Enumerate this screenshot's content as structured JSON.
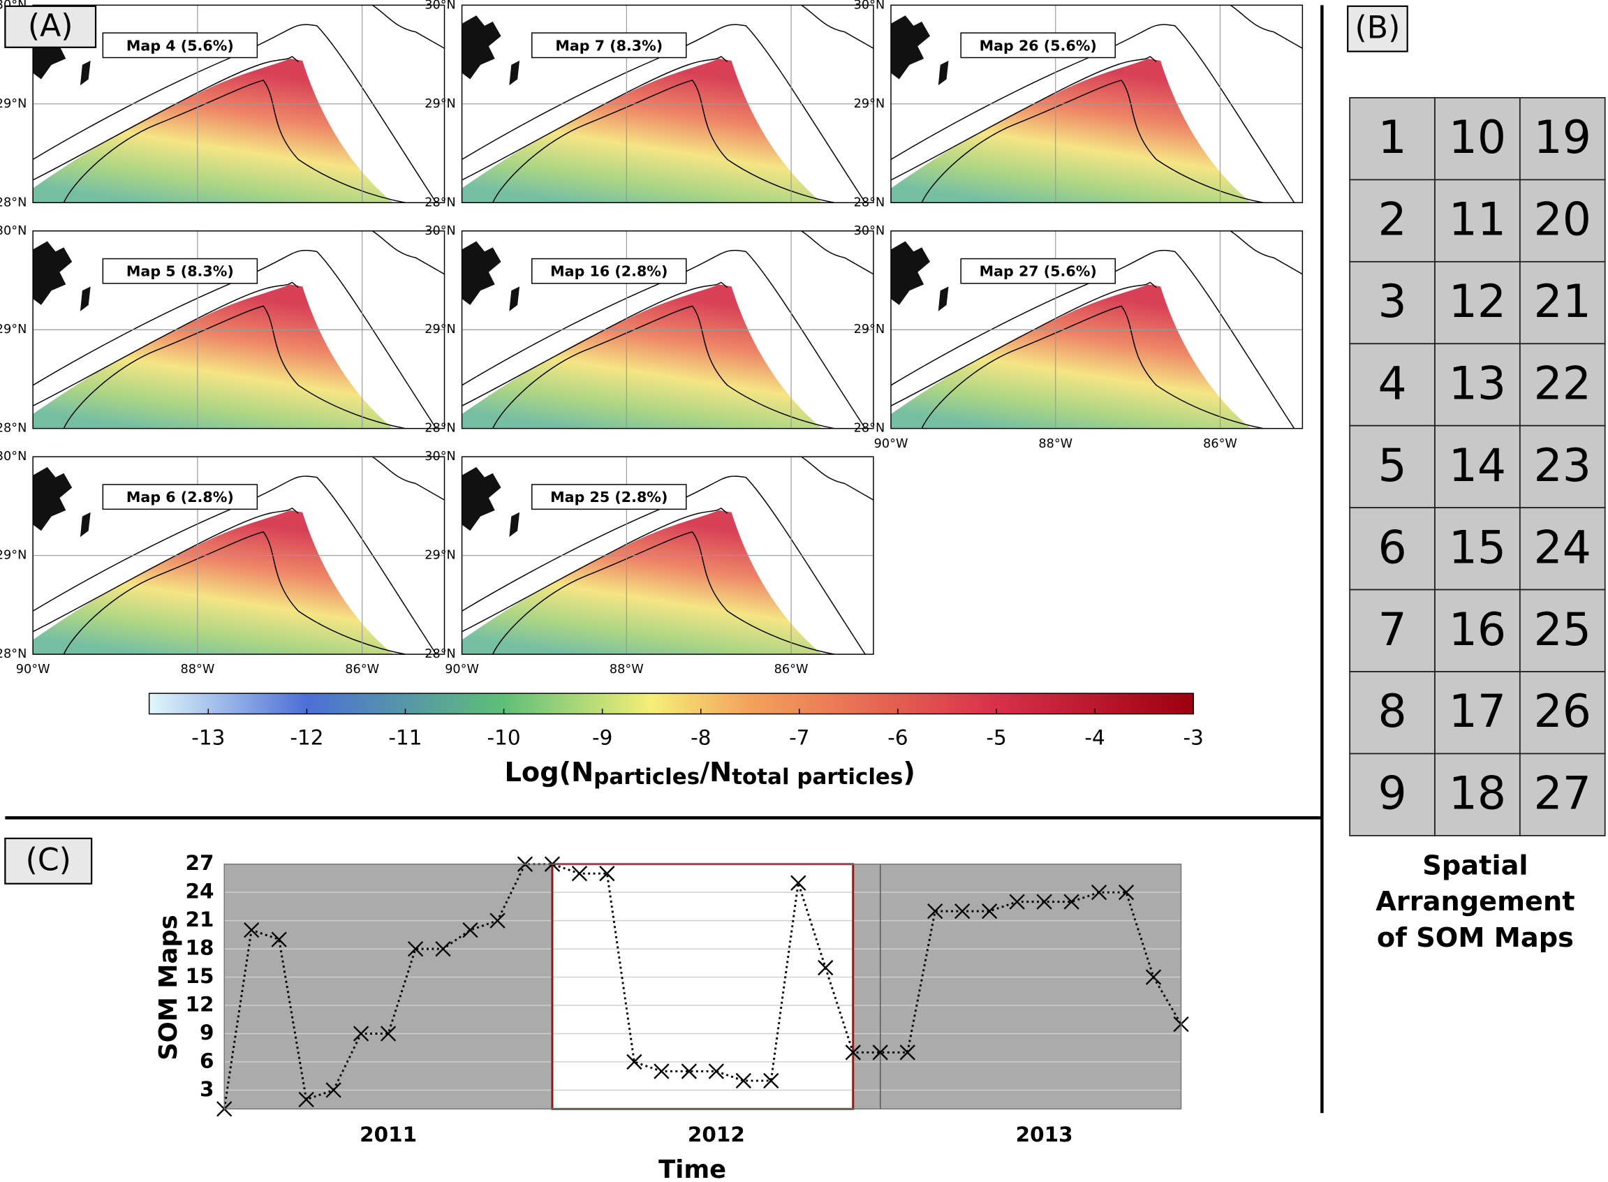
{
  "panel_labels": {
    "a": "(A)",
    "b": "(B)",
    "c": "(C)"
  },
  "maps": {
    "rows": [
      [
        {
          "label": "Map 4 (5.6%)"
        },
        {
          "label": "Map 7 (8.3%)"
        },
        {
          "label": "Map 26 (5.6%)"
        }
      ],
      [
        {
          "label": "Map 5 (8.3%)"
        },
        {
          "label": "Map 16 (2.8%)"
        },
        {
          "label": "Map 27 (5.6%)"
        }
      ],
      [
        {
          "label": "Map 6 (2.8%)"
        },
        {
          "label": "Map 25 (2.8%)"
        }
      ]
    ],
    "lat_lim": [
      28,
      30
    ],
    "lat_ticks": [
      {
        "value": 28,
        "label": "28°N"
      },
      {
        "value": 29,
        "label": "29°N"
      },
      {
        "value": 30,
        "label": "30°N"
      }
    ],
    "lon_lim": [
      -90,
      -85
    ],
    "lon_ticks": [
      {
        "value": -90,
        "label": "90°W"
      },
      {
        "value": -88,
        "label": "88°W"
      },
      {
        "value": -86,
        "label": "86°W"
      }
    ]
  },
  "colorbar": {
    "lim": [
      -13.6,
      -3
    ],
    "ticks": [
      -13,
      -12,
      -11,
      -10,
      -9,
      -8,
      -7,
      -6,
      -5,
      -4,
      -3
    ],
    "colormap": [
      {
        "value": -13.6,
        "color": "#e2f8fb"
      },
      {
        "value": -12,
        "color": "#4d6fd6"
      },
      {
        "value": -10,
        "color": "#5fbf78"
      },
      {
        "value": -8.5,
        "color": "#f5ef78"
      },
      {
        "value": -7.5,
        "color": "#f3a25c"
      },
      {
        "value": -5,
        "color": "#d8304a"
      },
      {
        "value": -3,
        "color": "#9d0010"
      }
    ],
    "label_parts": [
      "Log(N",
      "particles",
      "/N",
      "total particles",
      ")"
    ]
  },
  "som_grid": {
    "cells": [
      {
        "n": 1,
        "color": "#8c8c8c"
      },
      {
        "n": 2,
        "color": "#8c8c8c"
      },
      {
        "n": 3,
        "color": "#8c8c8c"
      },
      {
        "n": 4,
        "color": "#8b0a0a"
      },
      {
        "n": 5,
        "color": "#8b0a0a"
      },
      {
        "n": 6,
        "color": "#8b0a0a"
      },
      {
        "n": 7,
        "color": "#8b0a0a"
      },
      {
        "n": 8,
        "color": "#ffffff"
      },
      {
        "n": 9,
        "color": "#8c8c8c"
      },
      {
        "n": 10,
        "color": "#8c8c8c"
      },
      {
        "n": 11,
        "color": "#ffffff"
      },
      {
        "n": 12,
        "color": "#ffffff"
      },
      {
        "n": 13,
        "color": "#ffffff"
      },
      {
        "n": 14,
        "color": "#ffffff"
      },
      {
        "n": 15,
        "color": "#8c8c8c"
      },
      {
        "n": 16,
        "color": "#8b0a0a"
      },
      {
        "n": 17,
        "color": "#ffffff"
      },
      {
        "n": 18,
        "color": "#8c8c8c"
      },
      {
        "n": 19,
        "color": "#8c8c8c"
      },
      {
        "n": 20,
        "color": "#8c8c8c"
      },
      {
        "n": 21,
        "color": "#8c8c8c"
      },
      {
        "n": 22,
        "color": "#8c8c8c"
      },
      {
        "n": 23,
        "color": "#8c8c8c"
      },
      {
        "n": 24,
        "color": "#8c8c8c"
      },
      {
        "n": 25,
        "color": "#8b0a0a"
      },
      {
        "n": 26,
        "color": "#8b0a0a"
      },
      {
        "n": 27,
        "color": "#8b0a0a"
      }
    ],
    "caption": [
      "Spatial",
      "Arrangement",
      "of SOM Maps"
    ]
  },
  "chart_data": {
    "type": "line",
    "x_label": "Time",
    "y_label": "SOM Maps",
    "x": [
      2011,
      2011.083,
      2011.167,
      2011.25,
      2011.333,
      2011.417,
      2011.5,
      2011.583,
      2011.667,
      2011.75,
      2011.833,
      2011.917,
      2012,
      2012.083,
      2012.167,
      2012.25,
      2012.333,
      2012.417,
      2012.5,
      2012.583,
      2012.667,
      2012.75,
      2012.833,
      2012.917,
      2013,
      2013.083,
      2013.167,
      2013.25,
      2013.333,
      2013.417,
      2013.5,
      2013.583,
      2013.667,
      2013.75,
      2013.833,
      2013.917
    ],
    "values": [
      1,
      20,
      19,
      2,
      3,
      9,
      9,
      18,
      18,
      20,
      21,
      27,
      27,
      26,
      26,
      6,
      5,
      5,
      5,
      4,
      4,
      25,
      16,
      7,
      7,
      7,
      22,
      22,
      22,
      23,
      23,
      23,
      24,
      24,
      15,
      10
    ],
    "color": "#000000",
    "xlim": [
      2011,
      2013.917
    ],
    "xticks": [
      {
        "value": 2011.5,
        "label": "2011"
      },
      {
        "value": 2012.5,
        "label": "2012"
      },
      {
        "value": 2013.5,
        "label": "2013"
      }
    ],
    "ylim": [
      1,
      27
    ],
    "yticks": [
      3,
      6,
      9,
      12,
      15,
      18,
      21,
      24,
      27
    ],
    "highlight": [
      2012,
      2012.917
    ],
    "year_lines": [
      2012,
      2013
    ],
    "grid": true
  }
}
